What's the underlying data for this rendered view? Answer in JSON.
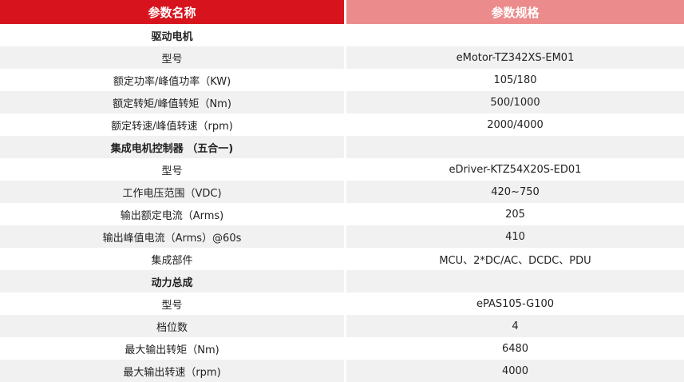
{
  "header": {
    "left": "参数名称",
    "right": "参数规格"
  },
  "rows": [
    {
      "section": "驱动电机"
    },
    [
      "型号",
      "eMotor-TZ342XS-EM01"
    ],
    [
      "额定功率/峰值功率（KW)",
      "105/180"
    ],
    [
      "额定转矩/峰值转矩（Nm)",
      "500/1000"
    ],
    [
      "额定转速/峰值转速（rpm)",
      "2000/4000"
    ],
    {
      "section": "集成电机控制器 （五合一)"
    },
    [
      "型号",
      "eDriver-KTZ54X20S-ED01"
    ],
    [
      "工作电压范围（VDC)",
      "420~750"
    ],
    [
      "输出额定电流（Arms)",
      "205"
    ],
    [
      "输出峰值电流（Arms）@60s",
      "410"
    ],
    [
      "集成部件",
      "MCU、2*DC/AC、DCDC、PDU"
    ],
    {
      "section": "动力总成"
    },
    [
      "型号",
      "ePAS105-G100"
    ],
    [
      "档位数",
      "4"
    ],
    [
      "最大输出转矩（Nm)",
      "6480"
    ],
    [
      "最大输出转速（rpm)",
      "4000"
    ]
  ]
}
